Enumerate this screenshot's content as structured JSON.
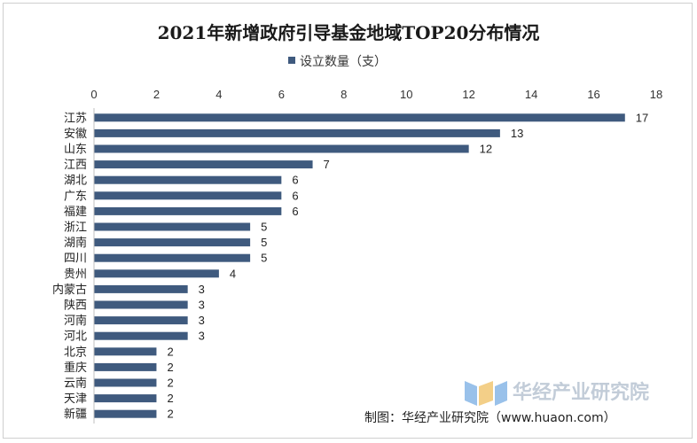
{
  "chart_data": {
    "type": "bar",
    "orientation": "horizontal",
    "title": "2021年新增政府引导基金地域TOP20分布情况",
    "categories": [
      "江苏",
      "安徽",
      "山东",
      "江西",
      "湖北",
      "广东",
      "福建",
      "浙江",
      "湖南",
      "四川",
      "贵州",
      "内蒙古",
      "陕西",
      "河南",
      "河北",
      "北京",
      "重庆",
      "云南",
      "天津",
      "新疆"
    ],
    "series": [
      {
        "name": "设立数量（支）",
        "values": [
          17,
          13,
          12,
          7,
          6,
          6,
          6,
          5,
          5,
          5,
          4,
          3,
          3,
          3,
          3,
          2,
          2,
          2,
          2,
          2
        ]
      }
    ],
    "xlim": [
      0,
      18
    ],
    "ticks": [
      "0",
      "2",
      "4",
      "6",
      "8",
      "10",
      "12",
      "14",
      "16",
      "18"
    ],
    "grid": false,
    "legend": "top-center",
    "bar_color": "#3f5a7e"
  },
  "source_text": "制图：华经产业研究院（www.huaon.com）",
  "watermark_text": "华经产业研究院"
}
